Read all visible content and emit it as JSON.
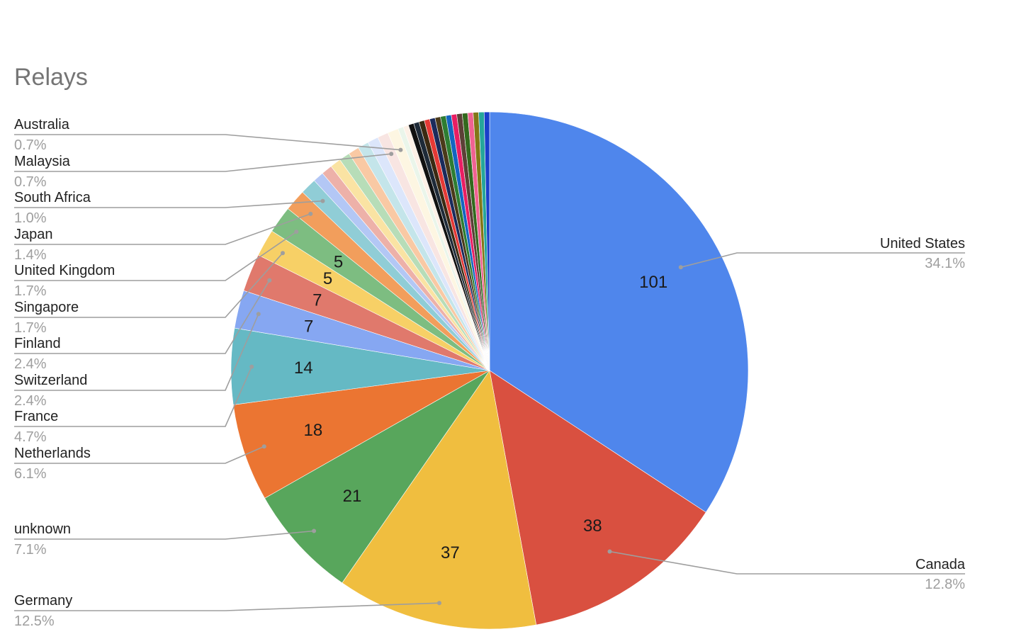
{
  "chart_data": {
    "type": "pie",
    "title": "Relays",
    "slices": [
      {
        "label": "United States",
        "value": 101,
        "percent": "34.1%",
        "color": "#4F86EC",
        "show_value": true
      },
      {
        "label": "Canada",
        "value": 38,
        "percent": "12.8%",
        "color": "#D95040",
        "show_value": true
      },
      {
        "label": "Germany",
        "value": 37,
        "percent": "12.5%",
        "color": "#F0BE3F",
        "show_value": true
      },
      {
        "label": "unknown",
        "value": 21,
        "percent": "7.1%",
        "color": "#58A65C",
        "show_value": true
      },
      {
        "label": "Netherlands",
        "value": 18,
        "percent": "6.1%",
        "color": "#EB7532",
        "show_value": true
      },
      {
        "label": "France",
        "value": 14,
        "percent": "4.7%",
        "color": "#65B9C4",
        "show_value": true
      },
      {
        "label": "Switzerland",
        "value": 7,
        "percent": "2.4%",
        "color": "#86A7F2",
        "show_value": true
      },
      {
        "label": "Finland",
        "value": 7,
        "percent": "2.4%",
        "color": "#E0796C",
        "show_value": true
      },
      {
        "label": "Singapore",
        "value": 5,
        "percent": "1.7%",
        "color": "#F7D066",
        "show_value": true
      },
      {
        "label": "United Kingdom",
        "value": 5,
        "percent": "1.7%",
        "color": "#7DBD81",
        "show_value": true
      },
      {
        "label": "Japan",
        "value": 4,
        "percent": "1.4%",
        "color": "#F29E5C",
        "show_value": false
      },
      {
        "label": "South Africa",
        "value": 3,
        "percent": "1.0%",
        "color": "#90CDD6",
        "show_value": false
      },
      {
        "label": "",
        "value": 2,
        "color": "#B3C7F5",
        "show_value": false
      },
      {
        "label": "",
        "value": 2,
        "color": "#EDB1A9",
        "show_value": false
      },
      {
        "label": "",
        "value": 2,
        "color": "#FAE3A3",
        "show_value": false
      },
      {
        "label": "",
        "value": 2,
        "color": "#B7DDB8",
        "show_value": false
      },
      {
        "label": "",
        "value": 2,
        "color": "#F9C9A4",
        "show_value": false
      },
      {
        "label": "",
        "value": 2,
        "color": "#C4E5EA",
        "show_value": false
      },
      {
        "label": "",
        "value": 2,
        "color": "#DCE6FB",
        "show_value": false
      },
      {
        "label": "Malaysia",
        "value": 2,
        "percent": "0.7%",
        "color": "#F8E5E2",
        "show_value": false
      },
      {
        "label": "Australia",
        "value": 2,
        "percent": "0.7%",
        "color": "#FDF6E2",
        "show_value": false
      },
      {
        "label": "",
        "value": 1,
        "color": "#EAF5EA",
        "show_value": false
      },
      {
        "label": "",
        "value": 1,
        "color": "#FDF0E6",
        "show_value": false
      },
      {
        "label": "",
        "value": 1,
        "color": "#111111",
        "show_value": false
      },
      {
        "label": "",
        "value": 1,
        "color": "#1E2A38",
        "show_value": false
      },
      {
        "label": "",
        "value": 1,
        "color": "#3B2A12",
        "show_value": false
      },
      {
        "label": "",
        "value": 1,
        "color": "#E53935",
        "show_value": false
      },
      {
        "label": "",
        "value": 1,
        "color": "#1B2B5C",
        "show_value": false
      },
      {
        "label": "",
        "value": 1,
        "color": "#4A3A1A",
        "show_value": false
      },
      {
        "label": "",
        "value": 1,
        "color": "#2E7D32",
        "show_value": false
      },
      {
        "label": "",
        "value": 1,
        "color": "#1565C0",
        "show_value": false
      },
      {
        "label": "",
        "value": 1,
        "color": "#E91E63",
        "show_value": false
      },
      {
        "label": "",
        "value": 1,
        "color": "#5D4037",
        "show_value": false
      },
      {
        "label": "",
        "value": 1,
        "color": "#33691E",
        "show_value": false
      },
      {
        "label": "",
        "value": 1,
        "color": "#F06292",
        "show_value": false
      },
      {
        "label": "",
        "value": 1,
        "color": "#827717",
        "show_value": false
      },
      {
        "label": "",
        "value": 1,
        "color": "#26A69A",
        "show_value": false
      },
      {
        "label": "",
        "value": 1,
        "color": "#1A3FC9",
        "show_value": false
      }
    ]
  }
}
